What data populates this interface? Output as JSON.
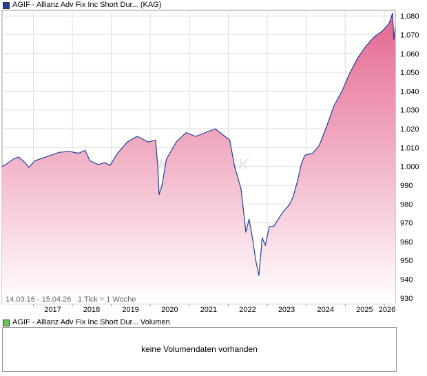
{
  "price_legend": {
    "label": "AGIF - Allianz Adv Fix Inc Short Dur... (KAG)",
    "color": "#1f3f9a"
  },
  "volume_legend": {
    "label": "AGIF - Allianz Adv Fix Inc Short Dur... Volumen",
    "color": "#6fbf5a"
  },
  "volume_message": "keine Volumendaten vorhanden",
  "range_text": "14.03.16 - 15.04.26",
  "tick_text": "1 Tick = 1 Woche",
  "watermark": "AKTIENCHECK",
  "colors": {
    "line": "#1f3f9a",
    "fill_top": "#e4668f",
    "fill_bottom": "#ffffff",
    "grid": "#dddddd"
  },
  "chart_data": {
    "type": "area",
    "x_tick_labels": [
      "2017",
      "2018",
      "2019",
      "2020",
      "2021",
      "2022",
      "2023",
      "2024",
      "2025",
      "2026"
    ],
    "y_tick_labels": [
      "930",
      "940",
      "950",
      "960",
      "970",
      "980",
      "990",
      "1.000",
      "1.010",
      "1.020",
      "1.030",
      "1.040",
      "1.050",
      "1.060",
      "1.070",
      "1.080"
    ],
    "ylim": [
      927,
      1083
    ],
    "xlim": [
      "2016-03-14",
      "2026-04-15"
    ],
    "grid": true,
    "series": [
      {
        "points": [
          [
            "2016-03-14",
            1000.0
          ],
          [
            "2016-05-01",
            1001.5
          ],
          [
            "2016-07-01",
            1004.0
          ],
          [
            "2016-08-15",
            1005.0
          ],
          [
            "2016-10-15",
            1002.0
          ],
          [
            "2016-11-20",
            999.5
          ],
          [
            "2017-01-15",
            1003.0
          ],
          [
            "2017-04-01",
            1004.5
          ],
          [
            "2017-06-15",
            1006.0
          ],
          [
            "2017-09-01",
            1007.5
          ],
          [
            "2017-12-01",
            1008.0
          ],
          [
            "2018-03-01",
            1007.0
          ],
          [
            "2018-05-01",
            1008.5
          ],
          [
            "2018-06-15",
            1003.0
          ],
          [
            "2018-09-01",
            1001.0
          ],
          [
            "2018-11-01",
            1002.0
          ],
          [
            "2018-12-20",
            1000.5
          ],
          [
            "2019-03-01",
            1007.0
          ],
          [
            "2019-06-01",
            1013.0
          ],
          [
            "2019-09-01",
            1016.0
          ],
          [
            "2019-12-15",
            1013.0
          ],
          [
            "2020-02-20",
            1014.0
          ],
          [
            "2020-03-12",
            1000.0
          ],
          [
            "2020-03-24",
            985.0
          ],
          [
            "2020-04-20",
            990.0
          ],
          [
            "2020-06-01",
            1004.0
          ],
          [
            "2020-09-01",
            1013.0
          ],
          [
            "2020-12-01",
            1018.0
          ],
          [
            "2021-03-01",
            1016.0
          ],
          [
            "2021-06-01",
            1018.0
          ],
          [
            "2021-09-01",
            1020.0
          ],
          [
            "2021-12-01",
            1016.0
          ],
          [
            "2022-01-15",
            1014.0
          ],
          [
            "2022-03-01",
            1000.0
          ],
          [
            "2022-05-01",
            988.0
          ],
          [
            "2022-06-15",
            965.0
          ],
          [
            "2022-07-15",
            972.0
          ],
          [
            "2022-08-15",
            962.0
          ],
          [
            "2022-09-15",
            950.0
          ],
          [
            "2022-10-15",
            942.0
          ],
          [
            "2022-11-15",
            962.0
          ],
          [
            "2022-12-15",
            958.0
          ],
          [
            "2023-01-20",
            968.0
          ],
          [
            "2023-03-01",
            968.0
          ],
          [
            "2023-04-15",
            972.0
          ],
          [
            "2023-06-01",
            976.0
          ],
          [
            "2023-08-01",
            980.0
          ],
          [
            "2023-09-01",
            984.0
          ],
          [
            "2023-10-15",
            993.0
          ],
          [
            "2023-11-15",
            1001.0
          ],
          [
            "2023-12-20",
            1006.0
          ],
          [
            "2024-03-01",
            1007.0
          ],
          [
            "2024-05-01",
            1011.0
          ],
          [
            "2024-07-15",
            1022.0
          ],
          [
            "2024-09-15",
            1032.0
          ],
          [
            "2024-12-01",
            1040.0
          ],
          [
            "2025-02-15",
            1050.0
          ],
          [
            "2025-05-01",
            1058.0
          ],
          [
            "2025-07-15",
            1064.0
          ],
          [
            "2025-10-01",
            1069.0
          ],
          [
            "2025-12-15",
            1072.0
          ],
          [
            "2026-02-15",
            1076.0
          ],
          [
            "2026-03-20",
            1081.5
          ],
          [
            "2026-04-01",
            1067.5
          ],
          [
            "2026-04-15",
            1074.0
          ]
        ]
      }
    ]
  }
}
